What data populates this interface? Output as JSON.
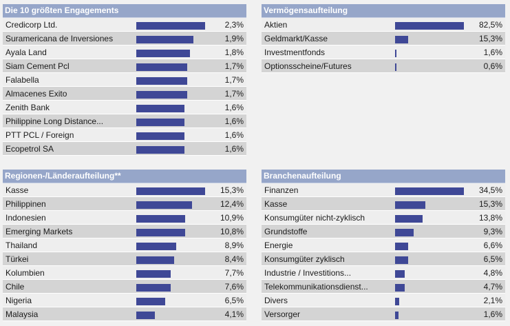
{
  "colors": {
    "header_bg": "#96a6c9",
    "bar": "#3f4896",
    "row_light": "#eeeeee",
    "row_dark": "#d4d4d4"
  },
  "panels": [
    {
      "id": "p-top10",
      "name": "top-10-holdings-panel",
      "title": "Die 10 größten Engagements",
      "rows": [
        {
          "label": "Credicorp Ltd.",
          "value": "2,3%",
          "pct": 2.3
        },
        {
          "label": "Suramericana de Inversiones",
          "value": "1,9%",
          "pct": 1.9
        },
        {
          "label": "Ayala Land",
          "value": "1,8%",
          "pct": 1.8
        },
        {
          "label": "Siam Cement Pcl",
          "value": "1,7%",
          "pct": 1.7
        },
        {
          "label": "Falabella",
          "value": "1,7%",
          "pct": 1.7
        },
        {
          "label": "Almacenes Exito",
          "value": "1,7%",
          "pct": 1.7
        },
        {
          "label": "Zenith Bank",
          "value": "1,6%",
          "pct": 1.6
        },
        {
          "label": "Philippine Long Distance...",
          "value": "1,6%",
          "pct": 1.6
        },
        {
          "label": "PTT PCL / Foreign",
          "value": "1,6%",
          "pct": 1.6
        },
        {
          "label": "Ecopetrol SA",
          "value": "1,6%",
          "pct": 1.6
        }
      ]
    },
    {
      "id": "p-assets",
      "name": "asset-allocation-panel",
      "title": "Vermögensaufteilung",
      "rows": [
        {
          "label": "Aktien",
          "value": "82,5%",
          "pct": 82.5
        },
        {
          "label": "Geldmarkt/Kasse",
          "value": "15,3%",
          "pct": 15.3
        },
        {
          "label": "Investmentfonds",
          "value": "1,6%",
          "pct": 1.6
        },
        {
          "label": "Optionsscheine/Futures",
          "value": "0,6%",
          "pct": 0.6
        }
      ]
    },
    {
      "id": "p-regions",
      "name": "region-allocation-panel",
      "title": "Regionen-/Länderaufteilung**",
      "rows": [
        {
          "label": "Kasse",
          "value": "15,3%",
          "pct": 15.3
        },
        {
          "label": "Philippinen",
          "value": "12,4%",
          "pct": 12.4
        },
        {
          "label": "Indonesien",
          "value": "10,9%",
          "pct": 10.9
        },
        {
          "label": "Emerging Markets",
          "value": "10,8%",
          "pct": 10.8
        },
        {
          "label": "Thailand",
          "value": "8,9%",
          "pct": 8.9
        },
        {
          "label": "Türkei",
          "value": "8,4%",
          "pct": 8.4
        },
        {
          "label": "Kolumbien",
          "value": "7,7%",
          "pct": 7.7
        },
        {
          "label": "Chile",
          "value": "7,6%",
          "pct": 7.6
        },
        {
          "label": "Nigeria",
          "value": "6,5%",
          "pct": 6.5
        },
        {
          "label": "Malaysia",
          "value": "4,1%",
          "pct": 4.1
        }
      ]
    },
    {
      "id": "p-sectors",
      "name": "sector-allocation-panel",
      "title": "Branchenaufteilung",
      "rows": [
        {
          "label": "Finanzen",
          "value": "34,5%",
          "pct": 34.5
        },
        {
          "label": "Kasse",
          "value": "15,3%",
          "pct": 15.3
        },
        {
          "label": "Konsumgüter nicht-zyklisch",
          "value": "13,8%",
          "pct": 13.8
        },
        {
          "label": "Grundstoffe",
          "value": "9,3%",
          "pct": 9.3
        },
        {
          "label": "Energie",
          "value": "6,6%",
          "pct": 6.6
        },
        {
          "label": "Konsumgüter zyklisch",
          "value": "6,5%",
          "pct": 6.5
        },
        {
          "label": "Industrie / Investitions...",
          "value": "4,8%",
          "pct": 4.8
        },
        {
          "label": "Telekommunikationsdienst...",
          "value": "4,7%",
          "pct": 4.7
        },
        {
          "label": "Divers",
          "value": "2,1%",
          "pct": 2.1
        },
        {
          "label": "Versorger",
          "value": "1,6%",
          "pct": 1.6
        }
      ]
    }
  ]
}
